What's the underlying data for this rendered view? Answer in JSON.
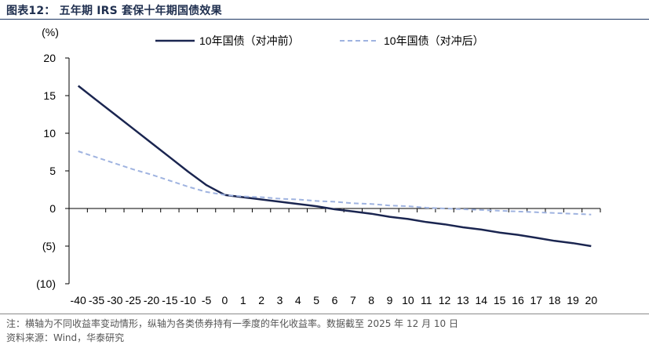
{
  "header": {
    "title": "图表12：  五年期 IRS 套保十年期国债效果"
  },
  "footer": {
    "note": "注：横轴为不同收益率变动情形，纵轴为各类债券持有一季度的年化收益率。数据截至 2025 年 12 月 10 日",
    "source": "资料来源：Wind，华泰研究"
  },
  "colors": {
    "series_unhedged": "#1a2550",
    "series_hedged": "#9fb3e0",
    "axis": "#000000"
  },
  "chart_data": {
    "type": "line",
    "ylabel": "(%)",
    "xlabel": "",
    "ylim": [
      -10,
      20
    ],
    "yticks": [
      20,
      15,
      10,
      5,
      0,
      -5,
      -10
    ],
    "ytick_labels": [
      "20",
      "15",
      "10",
      "5",
      "0",
      "(5)",
      "(10)"
    ],
    "categories": [
      "-40",
      "-35",
      "-30",
      "-25",
      "-20",
      "-15",
      "-10",
      "-5",
      "0",
      "1",
      "2",
      "3",
      "4",
      "5",
      "6",
      "7",
      "8",
      "9",
      "10",
      "11",
      "12",
      "13",
      "14",
      "15",
      "16",
      "17",
      "18",
      "19",
      "20"
    ],
    "legend_position": "top",
    "series": [
      {
        "name": "10年国债（对冲前）",
        "style": "solid",
        "values": [
          16.3,
          14.4,
          12.5,
          10.6,
          8.7,
          6.8,
          4.9,
          3.1,
          1.8,
          1.5,
          1.2,
          0.9,
          0.6,
          0.3,
          -0.1,
          -0.4,
          -0.7,
          -1.1,
          -1.4,
          -1.8,
          -2.1,
          -2.5,
          -2.8,
          -3.2,
          -3.5,
          -3.9,
          -4.3,
          -4.6,
          -5.0
        ]
      },
      {
        "name": "10年国债（对冲后）",
        "style": "dashed",
        "values": [
          7.6,
          6.8,
          6.0,
          5.2,
          4.5,
          3.7,
          2.9,
          2.2,
          1.8,
          1.6,
          1.5,
          1.3,
          1.2,
          1.0,
          0.9,
          0.7,
          0.6,
          0.4,
          0.3,
          0.1,
          0.0,
          -0.1,
          -0.2,
          -0.3,
          -0.4,
          -0.5,
          -0.6,
          -0.7,
          -0.8
        ]
      }
    ]
  }
}
